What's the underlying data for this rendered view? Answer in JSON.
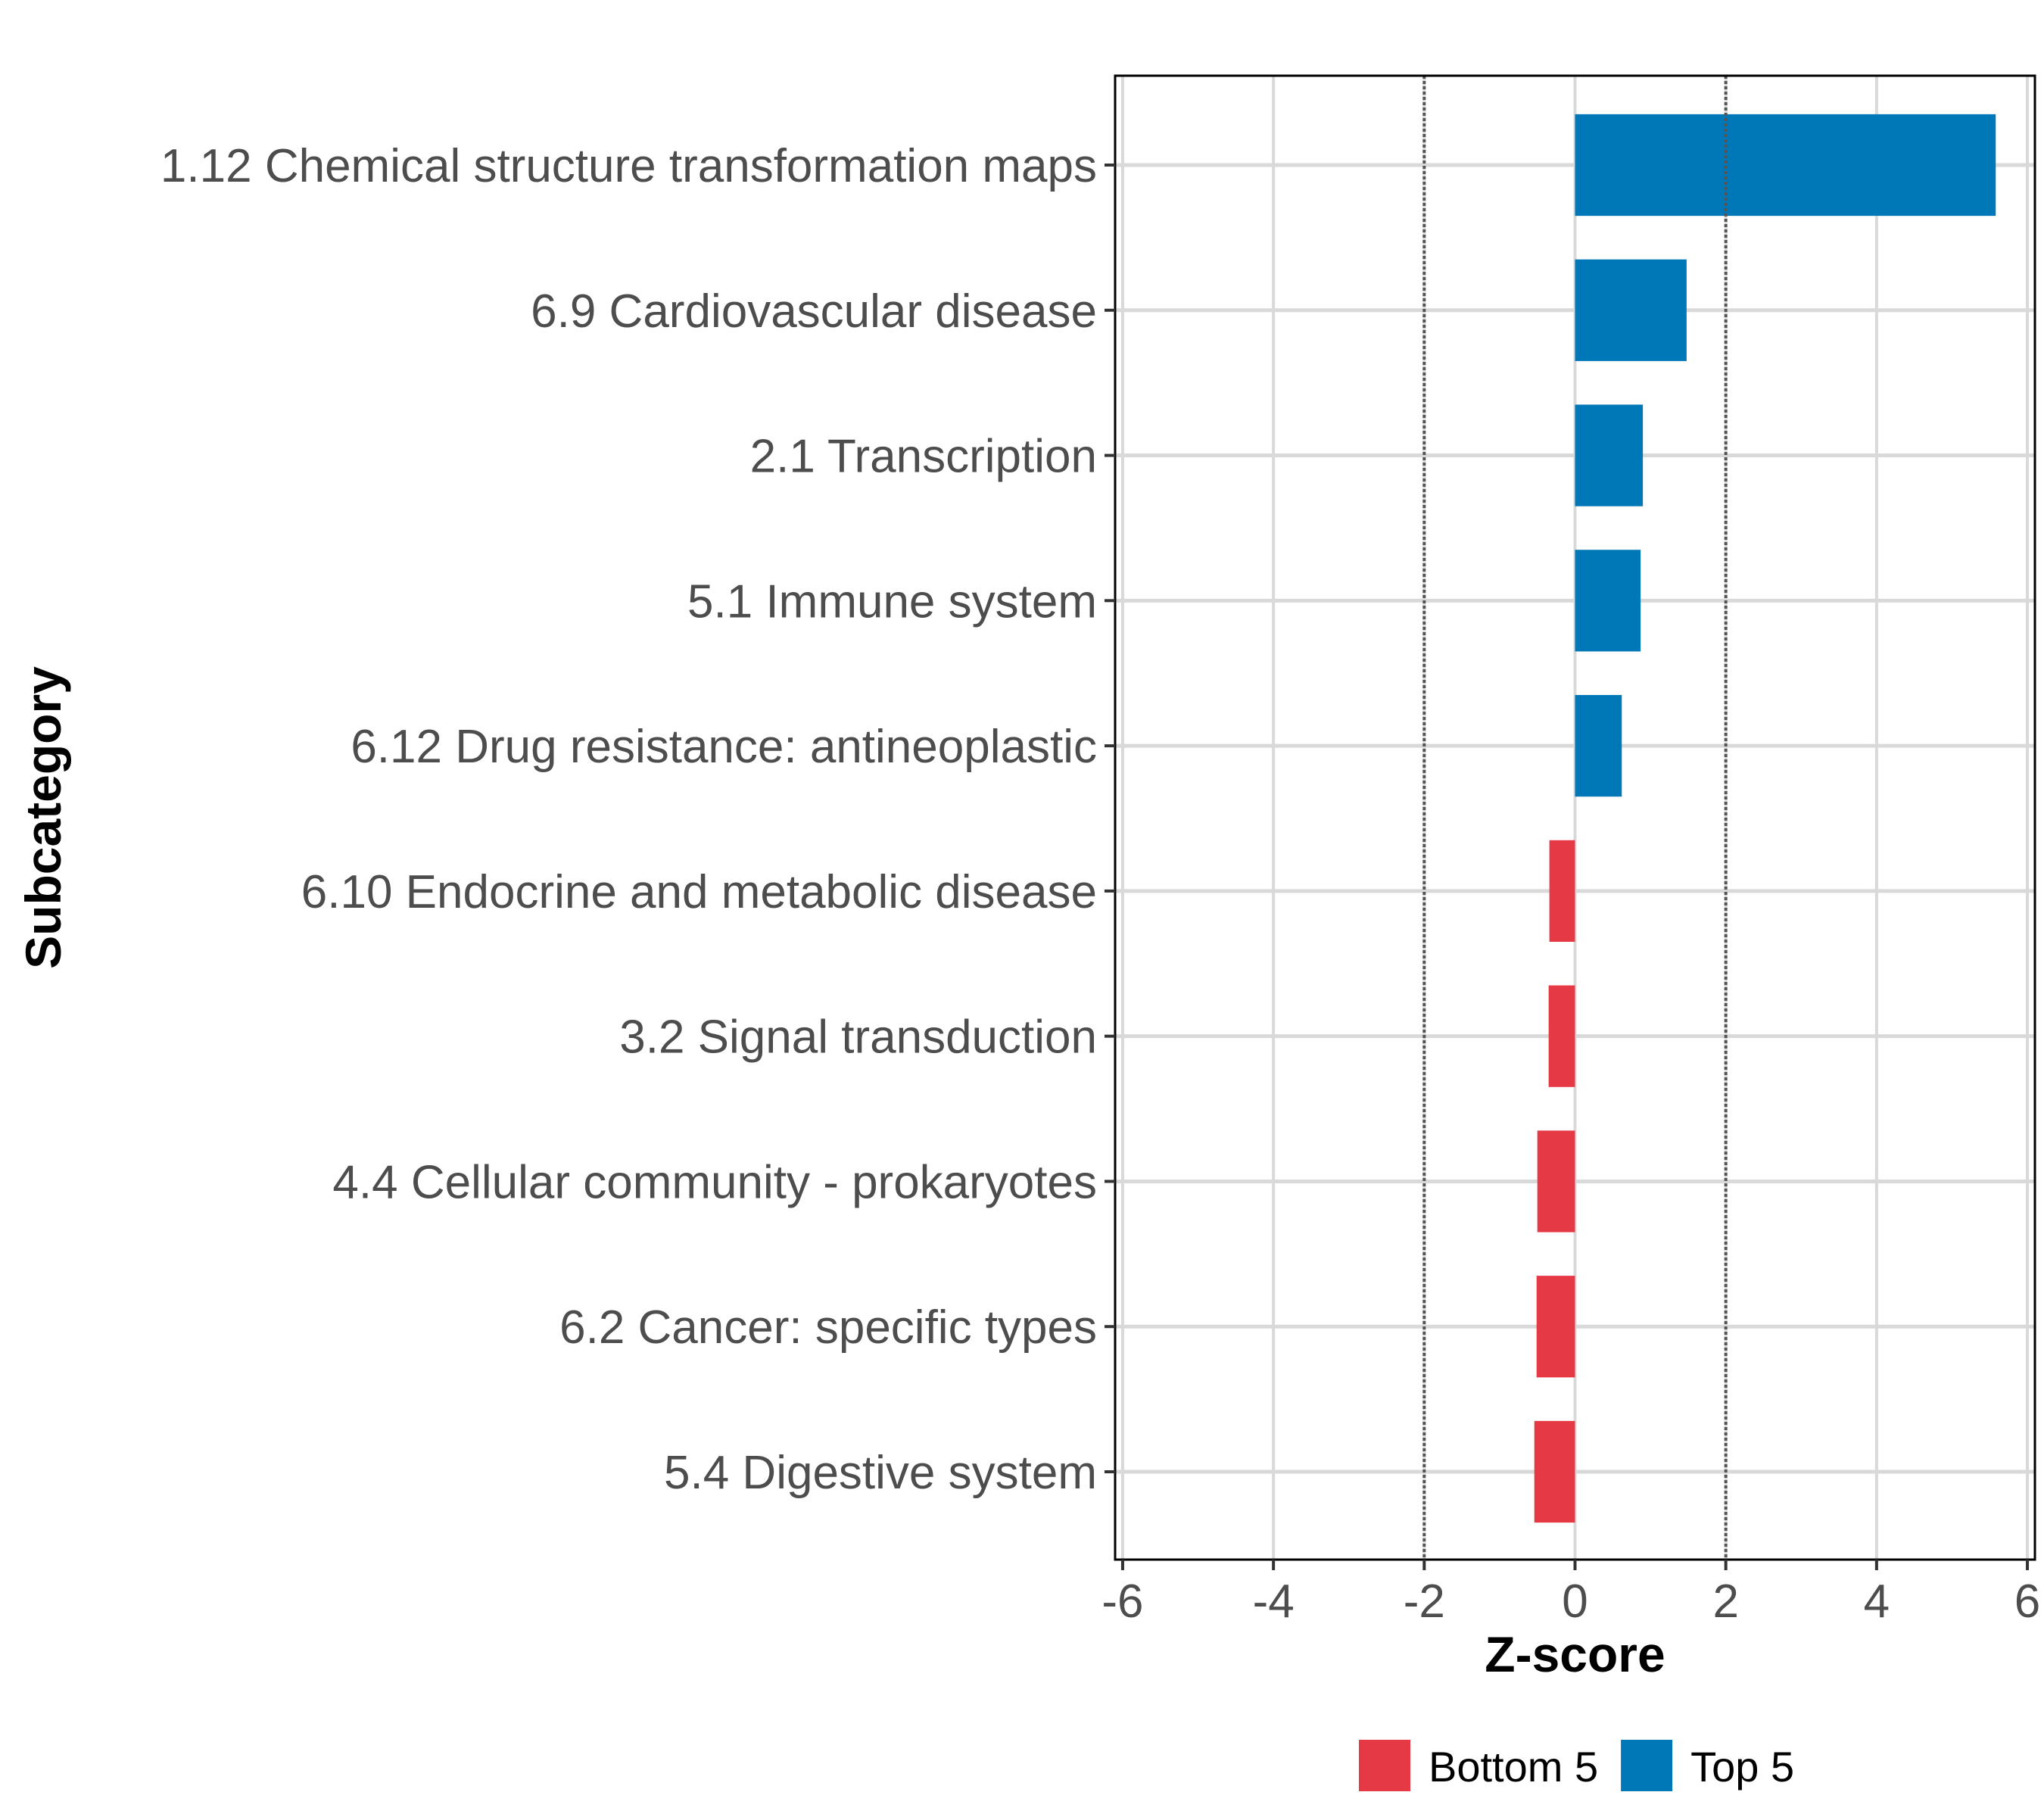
{
  "chart_data": {
    "type": "bar",
    "orientation": "horizontal",
    "title": "",
    "xlabel": "Z-score",
    "ylabel": "Subcategory",
    "xlim": [
      -6.1,
      6.1
    ],
    "xticks": [
      -6,
      -4,
      -2,
      0,
      2,
      4,
      6
    ],
    "xtick_labels": [
      "-6",
      "-4",
      "-2",
      "0",
      "2",
      "4",
      "6"
    ],
    "reference_lines": [
      -2,
      2
    ],
    "grid": true,
    "legend_position": "bottom",
    "categories": [
      "1.12 Chemical structure transformation maps",
      "6.9 Cardiovascular disease",
      "2.1 Transcription",
      "5.1 Immune system",
      "6.12 Drug resistance: antineoplastic",
      "6.10 Endocrine and metabolic disease",
      "3.2 Signal transduction",
      "4.4 Cellular community - prokaryotes",
      "6.2 Cancer: specific types",
      "5.4 Digestive system"
    ],
    "values": [
      5.58,
      1.48,
      0.9,
      0.87,
      0.62,
      -0.34,
      -0.35,
      -0.5,
      -0.51,
      -0.54
    ],
    "groups": [
      "Top 5",
      "Top 5",
      "Top 5",
      "Top 5",
      "Top 5",
      "Bottom 5",
      "Bottom 5",
      "Bottom 5",
      "Bottom 5",
      "Bottom 5"
    ],
    "legend": [
      {
        "name": "Bottom 5",
        "color": "#E63946"
      },
      {
        "name": "Top 5",
        "color": "#0077B6"
      }
    ]
  }
}
